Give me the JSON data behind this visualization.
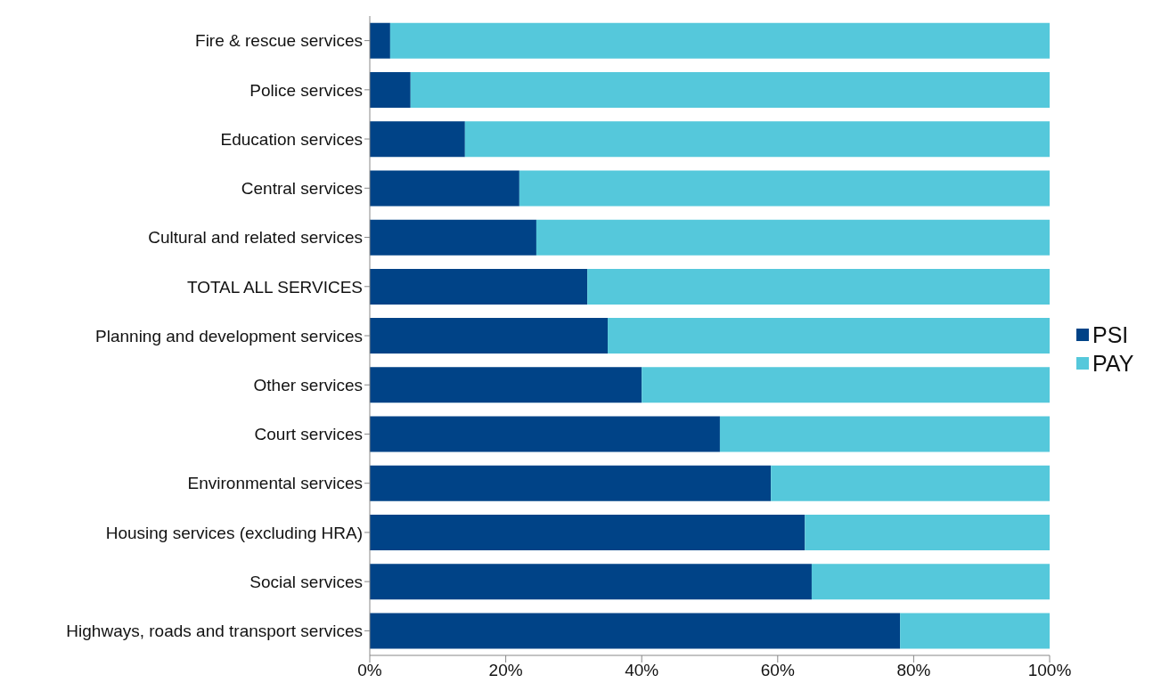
{
  "chart_data": {
    "type": "bar",
    "orientation": "horizontal",
    "stacked": true,
    "categories": [
      "Fire & rescue services",
      "Police services",
      "Education services",
      "Central services",
      "Cultural and related services",
      "TOTAL ALL SERVICES",
      "Planning and development services",
      "Other services",
      "Court services",
      "Environmental services",
      "Housing services (excluding HRA)",
      "Social services",
      "Highways, roads and transport services"
    ],
    "series": [
      {
        "name": "PSI",
        "color": "#004387",
        "values": [
          3,
          6,
          14,
          22,
          24.5,
          32,
          35,
          40,
          51.5,
          59,
          64,
          65,
          78
        ]
      },
      {
        "name": "PAY",
        "color": "#55c8db",
        "values": [
          97,
          94,
          86,
          78,
          75.5,
          68,
          65,
          60,
          48.5,
          41,
          36,
          35,
          22
        ]
      }
    ],
    "xlim": [
      0,
      100
    ],
    "xticks": [
      {
        "value": 0,
        "label": "0%"
      },
      {
        "value": 20,
        "label": "20%"
      },
      {
        "value": 40,
        "label": "40%"
      },
      {
        "value": 60,
        "label": "60%"
      },
      {
        "value": 80,
        "label": "80%"
      },
      {
        "value": 100,
        "label": "100%"
      }
    ],
    "grid": false,
    "legend": "right"
  }
}
